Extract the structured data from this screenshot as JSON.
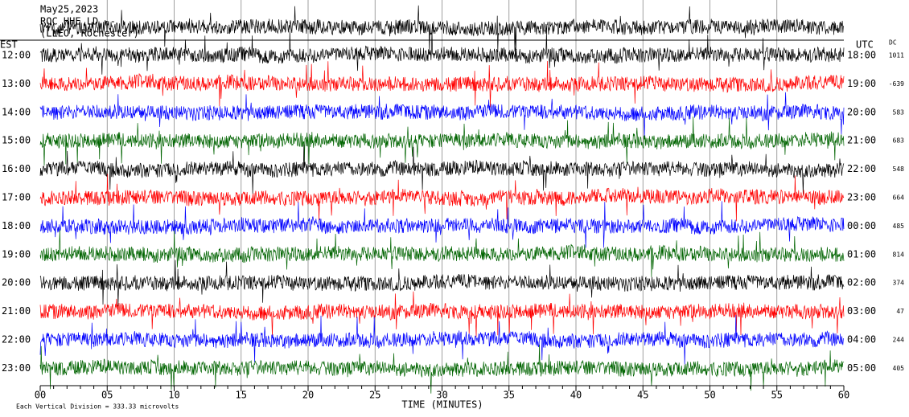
{
  "header": {
    "date": "May25,2023",
    "station": "ROC HHE LD --",
    "location": "(LLEO, Rochester)"
  },
  "est_label": "EST",
  "utc_label": "UTC",
  "dc_label": "DC",
  "rows": [
    {
      "est": "12:00",
      "utc": "18:00",
      "dc": 1011
    },
    {
      "est": "13:00",
      "utc": "19:00",
      "dc": -639
    },
    {
      "est": "14:00",
      "utc": "20:00",
      "dc": 583
    },
    {
      "est": "15:00",
      "utc": "21:00",
      "dc": 683
    },
    {
      "est": "16:00",
      "utc": "22:00",
      "dc": 548
    },
    {
      "est": "17:00",
      "utc": "23:00",
      "dc": 664
    },
    {
      "est": "18:00",
      "utc": "00:00",
      "dc": 485
    },
    {
      "est": "19:00",
      "utc": "01:00",
      "dc": 814
    },
    {
      "est": "20:00",
      "utc": "02:00",
      "dc": 374
    },
    {
      "est": "21:00",
      "utc": "03:00",
      "dc": 47
    },
    {
      "est": "22:00",
      "utc": "04:00",
      "dc": 244
    },
    {
      "est": "23:00",
      "utc": "05:00",
      "dc": 405
    }
  ],
  "x_axis": {
    "ticks": [
      "00",
      "05",
      "10",
      "15",
      "20",
      "25",
      "30",
      "35",
      "40",
      "45",
      "50",
      "55",
      "60"
    ],
    "title": "TIME (MINUTES)"
  },
  "footer": "Each Vertical Division =  333.33 microvolts"
}
